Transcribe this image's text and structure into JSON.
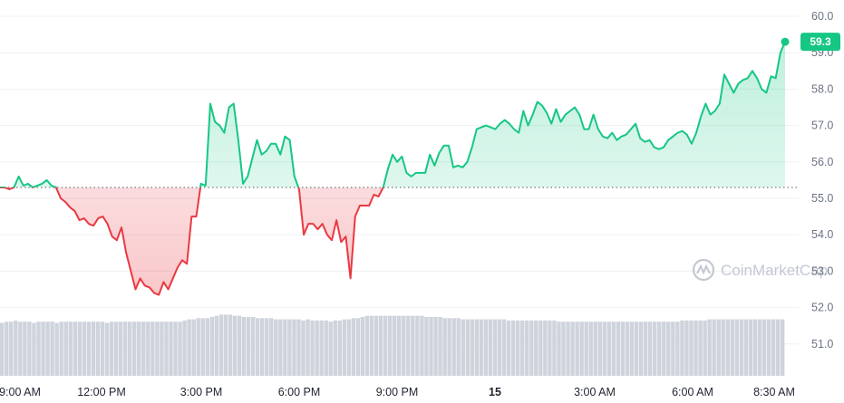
{
  "chart_data": {
    "type": "area",
    "y_ticks": [
      "60.0",
      "59.0",
      "58.0",
      "57.0",
      "56.0",
      "55.0",
      "54.0",
      "53.0",
      "52.0",
      "51.0"
    ],
    "ylim": [
      50.0,
      60.5
    ],
    "x_tick_labels": [
      "9:00 AM",
      "12:00 PM",
      "3:00 PM",
      "6:00 PM",
      "9:00 PM",
      "15",
      "3:00 AM",
      "6:00 AM",
      "8:30 AM"
    ],
    "baseline": 55.3,
    "last_value_label": "59.3",
    "watermark": "CoinMarketCap",
    "colors": {
      "up": "#16c784",
      "down": "#ea3943",
      "volume": "#cfd3dc",
      "grid": "#eef0f3"
    },
    "series": [
      {
        "values": [
          55.3,
          55.3,
          55.25,
          55.3,
          55.6,
          55.35,
          55.4,
          55.3,
          55.35,
          55.4,
          55.5,
          55.35,
          55.3,
          55.0,
          54.9,
          54.75,
          54.65,
          54.4,
          54.45,
          54.3,
          54.25,
          54.45,
          54.5,
          54.3,
          53.95,
          53.85,
          54.2,
          53.5,
          53.0,
          52.5,
          52.8,
          52.6,
          52.55,
          52.4,
          52.35,
          52.7,
          52.5,
          52.8,
          53.1,
          53.3,
          53.2,
          54.5,
          54.5,
          55.4,
          55.35,
          57.6,
          57.1,
          57.0,
          56.8,
          57.5,
          57.6,
          56.6,
          55.4,
          55.6,
          56.1,
          56.6,
          56.2,
          56.3,
          56.5,
          56.5,
          56.2,
          56.7,
          56.6,
          55.6,
          55.25,
          54.0,
          54.3,
          54.3,
          54.15,
          54.3,
          54.0,
          53.85,
          54.4,
          53.8,
          53.95,
          52.8,
          54.5,
          54.8,
          54.8,
          54.8,
          55.1,
          55.05,
          55.3,
          55.8,
          56.2,
          56.0,
          56.15,
          55.7,
          55.6,
          55.7,
          55.7,
          55.7,
          56.2,
          55.9,
          56.25,
          56.45,
          56.45,
          55.85,
          55.9,
          55.85,
          56.0,
          56.4,
          56.9,
          56.95,
          57.0,
          56.95,
          56.9,
          57.05,
          57.15,
          57.05,
          56.9,
          56.8,
          57.4,
          57.0,
          57.3,
          57.65,
          57.55,
          57.35,
          57.05,
          57.45,
          57.1,
          57.3,
          57.4,
          57.5,
          57.3,
          56.9,
          56.9,
          57.3,
          56.9,
          56.7,
          56.65,
          56.8,
          56.6,
          56.7,
          56.75,
          56.9,
          57.05,
          56.65,
          56.55,
          56.6,
          56.4,
          56.35,
          56.4,
          56.6,
          56.7,
          56.8,
          56.85,
          56.75,
          56.5,
          56.8,
          57.25,
          57.6,
          57.3,
          57.4,
          57.6,
          58.4,
          58.15,
          57.9,
          58.15,
          58.25,
          58.3,
          58.5,
          58.3,
          58.0,
          57.9,
          58.35,
          58.3,
          59.0,
          59.3
        ]
      }
    ],
    "volume": [
      0.45,
      0.46,
      0.46,
      0.47,
      0.46,
      0.46,
      0.46,
      0.45,
      0.46,
      0.46,
      0.46,
      0.46,
      0.45,
      0.46,
      0.46,
      0.46,
      0.46,
      0.46,
      0.46,
      0.46,
      0.46,
      0.46,
      0.46,
      0.45,
      0.46,
      0.46,
      0.46,
      0.46,
      0.46,
      0.46,
      0.46,
      0.46,
      0.46,
      0.46,
      0.46,
      0.46,
      0.46,
      0.46,
      0.46,
      0.46,
      0.47,
      0.48,
      0.48,
      0.49,
      0.49,
      0.49,
      0.5,
      0.51,
      0.52,
      0.52,
      0.52,
      0.51,
      0.51,
      0.5,
      0.5,
      0.5,
      0.49,
      0.49,
      0.49,
      0.49,
      0.48,
      0.48,
      0.48,
      0.48,
      0.48,
      0.48,
      0.47,
      0.48,
      0.47,
      0.47,
      0.47,
      0.47,
      0.46,
      0.47,
      0.47,
      0.48,
      0.48,
      0.49,
      0.49,
      0.5,
      0.51,
      0.51,
      0.51,
      0.51,
      0.51,
      0.51,
      0.51,
      0.51,
      0.51,
      0.51,
      0.51,
      0.51,
      0.51,
      0.5,
      0.5,
      0.5,
      0.5,
      0.49,
      0.49,
      0.49,
      0.49,
      0.48,
      0.48,
      0.48,
      0.48,
      0.48,
      0.48,
      0.48,
      0.48,
      0.48,
      0.48,
      0.47,
      0.47,
      0.47,
      0.47,
      0.47,
      0.47,
      0.47,
      0.47,
      0.47,
      0.47,
      0.47,
      0.46,
      0.46,
      0.46,
      0.46,
      0.46,
      0.46,
      0.46,
      0.46,
      0.46,
      0.46,
      0.46,
      0.46,
      0.46,
      0.46,
      0.46,
      0.46,
      0.46,
      0.46,
      0.46,
      0.46,
      0.46,
      0.46,
      0.46,
      0.46,
      0.46,
      0.46,
      0.46,
      0.47,
      0.47,
      0.47,
      0.47,
      0.47,
      0.47,
      0.48,
      0.48,
      0.48,
      0.48,
      0.48,
      0.48,
      0.48,
      0.48,
      0.48,
      0.48,
      0.48,
      0.48,
      0.48,
      0.48,
      0.48,
      0.48,
      0.48
    ]
  }
}
